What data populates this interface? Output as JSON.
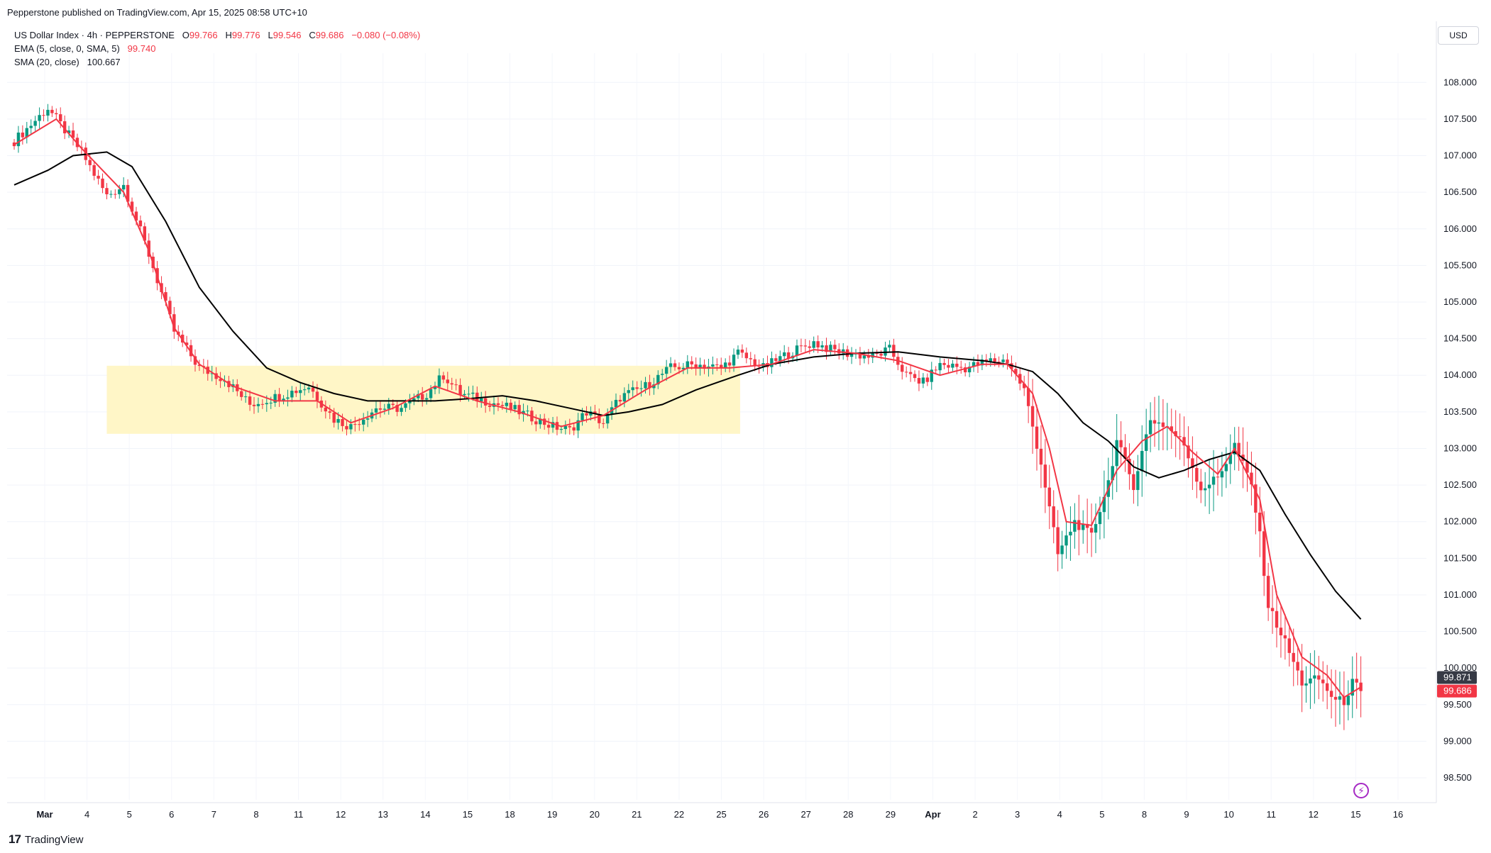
{
  "header": {
    "published": "Pepperstone published on TradingView.com, Apr 15, 2025 08:58 UTC+10"
  },
  "legend": {
    "symbol": "US Dollar Index · 4h · PEPPERSTONE",
    "o_label": "O",
    "o": "99.766",
    "h_label": "H",
    "h": "99.776",
    "l_label": "L",
    "l": "99.546",
    "c_label": "C",
    "c": "99.686",
    "change": "−0.080 (−0.08%)",
    "ema_label": "EMA (5, close, 0, SMA, 5)",
    "ema_value": "99.740",
    "sma_label": "SMA (20, close)",
    "sma_value": "100.667"
  },
  "currency": "USD",
  "footer": {
    "logo_text": "TradingView",
    "logo_mark": "17",
    "bolt_icon": "⚡"
  },
  "chart_data": {
    "type": "candlestick",
    "ylim": [
      98.2,
      108.4
    ],
    "y_ticks": [
      98.5,
      99.0,
      99.5,
      100.0,
      100.5,
      101.0,
      101.5,
      102.0,
      102.5,
      103.0,
      103.5,
      104.0,
      104.5,
      105.0,
      105.5,
      106.0,
      106.5,
      107.0,
      107.5,
      108.0
    ],
    "x_labels": [
      "Mar",
      "4",
      "5",
      "6",
      "7",
      "8",
      "11",
      "12",
      "13",
      "14",
      "15",
      "18",
      "19",
      "20",
      "21",
      "22",
      "25",
      "26",
      "27",
      "28",
      "29",
      "Apr",
      "2",
      "3",
      "4",
      "5",
      "8",
      "9",
      "10",
      "11",
      "12",
      "15",
      "16"
    ],
    "bold_x_labels": [
      "Mar",
      "Apr"
    ],
    "price_labels": [
      {
        "value": 99.871,
        "text": "99.871",
        "color": "#363a45"
      },
      {
        "value": 99.686,
        "text": "99.686",
        "color": "#f23645"
      }
    ],
    "colors": {
      "up": "#089981",
      "down": "#f23645",
      "ema": "#f23645",
      "sma": "#000000",
      "highlight": "#fff6c4"
    },
    "highlight_zone": {
      "x_start": 22.0,
      "x_end": 172.5,
      "y_low": 103.2,
      "y_high": 104.13
    },
    "keypoints": [
      [
        0,
        107.2
      ],
      [
        8,
        107.65
      ],
      [
        10,
        107.5
      ],
      [
        16,
        107.05
      ],
      [
        22,
        106.45
      ],
      [
        26,
        106.6
      ],
      [
        32,
        105.65
      ],
      [
        38,
        104.6
      ],
      [
        44,
        104.1
      ],
      [
        50,
        103.95
      ],
      [
        56,
        103.6
      ],
      [
        62,
        103.7
      ],
      [
        70,
        103.85
      ],
      [
        76,
        103.4
      ],
      [
        80,
        103.3
      ],
      [
        86,
        103.55
      ],
      [
        92,
        103.55
      ],
      [
        98,
        103.75
      ],
      [
        102,
        104.0
      ],
      [
        106,
        103.75
      ],
      [
        112,
        103.65
      ],
      [
        118,
        103.55
      ],
      [
        124,
        103.4
      ],
      [
        128,
        103.3
      ],
      [
        132,
        103.25
      ],
      [
        136,
        103.5
      ],
      [
        140,
        103.35
      ],
      [
        144,
        103.7
      ],
      [
        150,
        103.85
      ],
      [
        156,
        104.1
      ],
      [
        162,
        104.15
      ],
      [
        168,
        104.1
      ],
      [
        172,
        104.3
      ],
      [
        178,
        104.1
      ],
      [
        184,
        104.3
      ],
      [
        190,
        104.45
      ],
      [
        194,
        104.35
      ],
      [
        198,
        104.3
      ],
      [
        204,
        104.25
      ],
      [
        208,
        104.35
      ],
      [
        212,
        104.0
      ],
      [
        216,
        103.9
      ],
      [
        220,
        104.15
      ],
      [
        226,
        104.1
      ],
      [
        232,
        104.2
      ],
      [
        236,
        104.2
      ],
      [
        240,
        103.8
      ],
      [
        244,
        102.8
      ],
      [
        248,
        101.55
      ],
      [
        252,
        102.0
      ],
      [
        256,
        101.8
      ],
      [
        260,
        102.55
      ],
      [
        262,
        103.1
      ],
      [
        266,
        102.5
      ],
      [
        270,
        103.4
      ],
      [
        274,
        103.3
      ],
      [
        278,
        103.05
      ],
      [
        282,
        102.45
      ],
      [
        286,
        102.6
      ],
      [
        290,
        103.05
      ],
      [
        294,
        102.5
      ],
      [
        296,
        101.8
      ],
      [
        298,
        100.85
      ],
      [
        302,
        100.35
      ],
      [
        306,
        99.8
      ],
      [
        310,
        99.85
      ],
      [
        314,
        99.55
      ],
      [
        316,
        99.55
      ],
      [
        318,
        99.8
      ],
      [
        320,
        99.686
      ]
    ],
    "ema_points": [
      [
        0,
        107.15
      ],
      [
        10,
        107.5
      ],
      [
        16,
        107.1
      ],
      [
        26,
        106.5
      ],
      [
        32,
        105.7
      ],
      [
        38,
        104.65
      ],
      [
        44,
        104.15
      ],
      [
        52,
        103.85
      ],
      [
        62,
        103.65
      ],
      [
        72,
        103.65
      ],
      [
        80,
        103.35
      ],
      [
        90,
        103.55
      ],
      [
        100,
        103.85
      ],
      [
        110,
        103.65
      ],
      [
        120,
        103.5
      ],
      [
        130,
        103.3
      ],
      [
        140,
        103.45
      ],
      [
        150,
        103.8
      ],
      [
        160,
        104.1
      ],
      [
        170,
        104.1
      ],
      [
        180,
        104.15
      ],
      [
        190,
        104.35
      ],
      [
        200,
        104.3
      ],
      [
        210,
        104.2
      ],
      [
        220,
        104.0
      ],
      [
        230,
        104.15
      ],
      [
        236,
        104.15
      ],
      [
        242,
        103.75
      ],
      [
        246,
        103.0
      ],
      [
        250,
        102.0
      ],
      [
        256,
        101.95
      ],
      [
        262,
        102.7
      ],
      [
        268,
        103.1
      ],
      [
        274,
        103.3
      ],
      [
        280,
        102.95
      ],
      [
        286,
        102.65
      ],
      [
        290,
        103.0
      ],
      [
        296,
        102.3
      ],
      [
        300,
        101.0
      ],
      [
        306,
        100.15
      ],
      [
        312,
        99.9
      ],
      [
        316,
        99.6
      ],
      [
        320,
        99.74
      ]
    ],
    "sma_points": [
      [
        0,
        106.6
      ],
      [
        8,
        106.8
      ],
      [
        14,
        107.0
      ],
      [
        22,
        107.05
      ],
      [
        28,
        106.85
      ],
      [
        36,
        106.1
      ],
      [
        44,
        105.2
      ],
      [
        52,
        104.6
      ],
      [
        60,
        104.1
      ],
      [
        68,
        103.9
      ],
      [
        76,
        103.75
      ],
      [
        84,
        103.65
      ],
      [
        92,
        103.65
      ],
      [
        100,
        103.65
      ],
      [
        108,
        103.68
      ],
      [
        116,
        103.72
      ],
      [
        124,
        103.65
      ],
      [
        132,
        103.55
      ],
      [
        140,
        103.45
      ],
      [
        146,
        103.5
      ],
      [
        154,
        103.6
      ],
      [
        162,
        103.8
      ],
      [
        172,
        104.0
      ],
      [
        180,
        104.15
      ],
      [
        190,
        104.25
      ],
      [
        200,
        104.3
      ],
      [
        210,
        104.32
      ],
      [
        220,
        104.25
      ],
      [
        230,
        104.2
      ],
      [
        236,
        104.15
      ],
      [
        242,
        104.05
      ],
      [
        248,
        103.75
      ],
      [
        254,
        103.35
      ],
      [
        260,
        103.1
      ],
      [
        266,
        102.75
      ],
      [
        272,
        102.6
      ],
      [
        278,
        102.7
      ],
      [
        284,
        102.85
      ],
      [
        290,
        102.95
      ],
      [
        296,
        102.7
      ],
      [
        302,
        102.1
      ],
      [
        308,
        101.55
      ],
      [
        314,
        101.05
      ],
      [
        320,
        100.667
      ]
    ]
  }
}
